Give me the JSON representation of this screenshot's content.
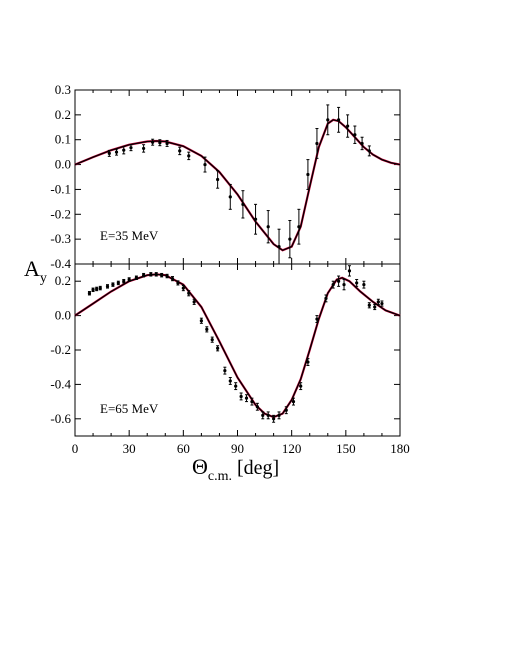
{
  "chart_data": {
    "type": "scatter",
    "xlabel": "Θ",
    "xlabel_sub": "c.m.",
    "xlabel_unit": "[deg]",
    "ylabel": "A",
    "ylabel_sub": "y",
    "xlim": [
      0,
      180
    ],
    "x_ticks": [
      "0",
      "30",
      "60",
      "90",
      "120",
      "150",
      "180"
    ],
    "panels": [
      {
        "annotation": "E=35 MeV",
        "ylim": [
          -0.4,
          0.3
        ],
        "y_ticks": [
          "-0.4",
          "-0.3",
          "-0.2",
          "-0.1",
          "0.0",
          "0.1",
          "0.2",
          "0.3"
        ],
        "points": [
          {
            "x": 19,
            "y": 0.045,
            "err": 0.012
          },
          {
            "x": 23,
            "y": 0.05,
            "err": 0.012
          },
          {
            "x": 27,
            "y": 0.058,
            "err": 0.015
          },
          {
            "x": 31,
            "y": 0.068,
            "err": 0.012
          },
          {
            "x": 38,
            "y": 0.065,
            "err": 0.015
          },
          {
            "x": 43,
            "y": 0.09,
            "err": 0.012
          },
          {
            "x": 47,
            "y": 0.088,
            "err": 0.012
          },
          {
            "x": 51,
            "y": 0.085,
            "err": 0.012
          },
          {
            "x": 58,
            "y": 0.055,
            "err": 0.015
          },
          {
            "x": 63,
            "y": 0.035,
            "err": 0.015
          },
          {
            "x": 72,
            "y": 0.0,
            "err": 0.03
          },
          {
            "x": 79,
            "y": -0.06,
            "err": 0.035
          },
          {
            "x": 86,
            "y": -0.13,
            "err": 0.05
          },
          {
            "x": 93,
            "y": -0.16,
            "err": 0.055
          },
          {
            "x": 100,
            "y": -0.22,
            "err": 0.06
          },
          {
            "x": 107,
            "y": -0.25,
            "err": 0.065
          },
          {
            "x": 113,
            "y": -0.33,
            "err": 0.07
          },
          {
            "x": 119,
            "y": -0.3,
            "err": 0.075
          },
          {
            "x": 124,
            "y": -0.25,
            "err": 0.07
          },
          {
            "x": 129,
            "y": -0.04,
            "err": 0.06
          },
          {
            "x": 134,
            "y": 0.085,
            "err": 0.06
          },
          {
            "x": 140,
            "y": 0.18,
            "err": 0.06
          },
          {
            "x": 146,
            "y": 0.18,
            "err": 0.05
          },
          {
            "x": 151,
            "y": 0.155,
            "err": 0.045
          },
          {
            "x": 155,
            "y": 0.12,
            "err": 0.035
          },
          {
            "x": 159,
            "y": 0.085,
            "err": 0.025
          },
          {
            "x": 163,
            "y": 0.055,
            "err": 0.02
          }
        ],
        "curve": [
          {
            "x": 0,
            "y": 0.0
          },
          {
            "x": 10,
            "y": 0.03
          },
          {
            "x": 20,
            "y": 0.058
          },
          {
            "x": 30,
            "y": 0.08
          },
          {
            "x": 40,
            "y": 0.093
          },
          {
            "x": 45,
            "y": 0.095
          },
          {
            "x": 50,
            "y": 0.093
          },
          {
            "x": 60,
            "y": 0.074
          },
          {
            "x": 70,
            "y": 0.035
          },
          {
            "x": 80,
            "y": -0.03
          },
          {
            "x": 90,
            "y": -0.12
          },
          {
            "x": 100,
            "y": -0.23
          },
          {
            "x": 110,
            "y": -0.32
          },
          {
            "x": 115,
            "y": -0.345
          },
          {
            "x": 120,
            "y": -0.33
          },
          {
            "x": 125,
            "y": -0.25
          },
          {
            "x": 130,
            "y": -0.09
          },
          {
            "x": 135,
            "y": 0.07
          },
          {
            "x": 140,
            "y": 0.165
          },
          {
            "x": 143,
            "y": 0.18
          },
          {
            "x": 146,
            "y": 0.175
          },
          {
            "x": 150,
            "y": 0.15
          },
          {
            "x": 155,
            "y": 0.11
          },
          {
            "x": 160,
            "y": 0.07
          },
          {
            "x": 165,
            "y": 0.04
          },
          {
            "x": 170,
            "y": 0.02
          },
          {
            "x": 175,
            "y": 0.007
          },
          {
            "x": 180,
            "y": 0.0
          }
        ]
      },
      {
        "annotation": "E=65 MeV",
        "ylim": [
          -0.7,
          0.3
        ],
        "y_ticks": [
          "-0.6",
          "-0.4",
          "-0.2",
          "0.0",
          "0.2"
        ],
        "points": [
          {
            "x": 8,
            "y": 0.13,
            "err": 0.01
          },
          {
            "x": 10,
            "y": 0.15,
            "err": 0.01
          },
          {
            "x": 12,
            "y": 0.155,
            "err": 0.01
          },
          {
            "x": 14,
            "y": 0.16,
            "err": 0.01
          },
          {
            "x": 18,
            "y": 0.17,
            "err": 0.01
          },
          {
            "x": 21,
            "y": 0.18,
            "err": 0.01
          },
          {
            "x": 24,
            "y": 0.19,
            "err": 0.01
          },
          {
            "x": 27,
            "y": 0.2,
            "err": 0.01
          },
          {
            "x": 30,
            "y": 0.21,
            "err": 0.01
          },
          {
            "x": 34,
            "y": 0.22,
            "err": 0.01
          },
          {
            "x": 38,
            "y": 0.235,
            "err": 0.01
          },
          {
            "x": 42,
            "y": 0.24,
            "err": 0.01
          },
          {
            "x": 45,
            "y": 0.24,
            "err": 0.01
          },
          {
            "x": 48,
            "y": 0.235,
            "err": 0.01
          },
          {
            "x": 51,
            "y": 0.23,
            "err": 0.01
          },
          {
            "x": 54,
            "y": 0.215,
            "err": 0.012
          },
          {
            "x": 57,
            "y": 0.19,
            "err": 0.012
          },
          {
            "x": 60,
            "y": 0.16,
            "err": 0.015
          },
          {
            "x": 63,
            "y": 0.13,
            "err": 0.015
          },
          {
            "x": 66,
            "y": 0.08,
            "err": 0.015
          },
          {
            "x": 70,
            "y": -0.03,
            "err": 0.015
          },
          {
            "x": 73,
            "y": -0.08,
            "err": 0.015
          },
          {
            "x": 76,
            "y": -0.14,
            "err": 0.015
          },
          {
            "x": 79,
            "y": -0.19,
            "err": 0.015
          },
          {
            "x": 83,
            "y": -0.32,
            "err": 0.02
          },
          {
            "x": 86,
            "y": -0.38,
            "err": 0.02
          },
          {
            "x": 89,
            "y": -0.41,
            "err": 0.02
          },
          {
            "x": 92,
            "y": -0.47,
            "err": 0.02
          },
          {
            "x": 95,
            "y": -0.48,
            "err": 0.02
          },
          {
            "x": 98,
            "y": -0.5,
            "err": 0.02
          },
          {
            "x": 101,
            "y": -0.53,
            "err": 0.02
          },
          {
            "x": 104,
            "y": -0.58,
            "err": 0.02
          },
          {
            "x": 107,
            "y": -0.58,
            "err": 0.02
          },
          {
            "x": 110,
            "y": -0.6,
            "err": 0.02
          },
          {
            "x": 113,
            "y": -0.58,
            "err": 0.02
          },
          {
            "x": 117,
            "y": -0.55,
            "err": 0.02
          },
          {
            "x": 121,
            "y": -0.5,
            "err": 0.02
          },
          {
            "x": 125,
            "y": -0.41,
            "err": 0.02
          },
          {
            "x": 129,
            "y": -0.27,
            "err": 0.02
          },
          {
            "x": 134,
            "y": -0.02,
            "err": 0.02
          },
          {
            "x": 139,
            "y": 0.1,
            "err": 0.02
          },
          {
            "x": 143,
            "y": 0.18,
            "err": 0.02
          },
          {
            "x": 146,
            "y": 0.2,
            "err": 0.03
          },
          {
            "x": 149,
            "y": 0.18,
            "err": 0.03
          },
          {
            "x": 152,
            "y": 0.26,
            "err": 0.03
          },
          {
            "x": 156,
            "y": 0.19,
            "err": 0.02
          },
          {
            "x": 160,
            "y": 0.18,
            "err": 0.02
          },
          {
            "x": 163,
            "y": 0.06,
            "err": 0.015
          },
          {
            "x": 166,
            "y": 0.05,
            "err": 0.015
          },
          {
            "x": 168,
            "y": 0.08,
            "err": 0.015
          },
          {
            "x": 170,
            "y": 0.07,
            "err": 0.015
          }
        ],
        "curve": [
          {
            "x": 0,
            "y": 0.0
          },
          {
            "x": 10,
            "y": 0.07
          },
          {
            "x": 20,
            "y": 0.14
          },
          {
            "x": 30,
            "y": 0.2
          },
          {
            "x": 40,
            "y": 0.235
          },
          {
            "x": 45,
            "y": 0.24
          },
          {
            "x": 50,
            "y": 0.235
          },
          {
            "x": 60,
            "y": 0.18
          },
          {
            "x": 70,
            "y": 0.05
          },
          {
            "x": 80,
            "y": -0.15
          },
          {
            "x": 90,
            "y": -0.36
          },
          {
            "x": 100,
            "y": -0.52
          },
          {
            "x": 105,
            "y": -0.57
          },
          {
            "x": 110,
            "y": -0.59
          },
          {
            "x": 115,
            "y": -0.57
          },
          {
            "x": 120,
            "y": -0.49
          },
          {
            "x": 125,
            "y": -0.37
          },
          {
            "x": 130,
            "y": -0.2
          },
          {
            "x": 135,
            "y": -0.02
          },
          {
            "x": 140,
            "y": 0.13
          },
          {
            "x": 145,
            "y": 0.21
          },
          {
            "x": 148,
            "y": 0.22
          },
          {
            "x": 152,
            "y": 0.2
          },
          {
            "x": 158,
            "y": 0.14
          },
          {
            "x": 165,
            "y": 0.08
          },
          {
            "x": 172,
            "y": 0.03
          },
          {
            "x": 180,
            "y": 0.0
          }
        ]
      }
    ]
  }
}
